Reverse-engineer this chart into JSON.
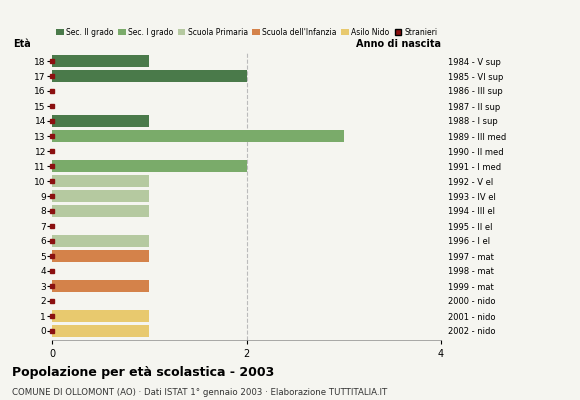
{
  "ages": [
    18,
    17,
    16,
    15,
    14,
    13,
    12,
    11,
    10,
    9,
    8,
    7,
    6,
    5,
    4,
    3,
    2,
    1,
    0
  ],
  "anno_nascita": [
    "1984 - V sup",
    "1985 - VI sup",
    "1986 - III sup",
    "1987 - II sup",
    "1988 - I sup",
    "1989 - III med",
    "1990 - II med",
    "1991 - I med",
    "1992 - V el",
    "1993 - IV el",
    "1994 - III el",
    "1995 - II el",
    "1996 - I el",
    "1997 - mat",
    "1998 - mat",
    "1999 - mat",
    "2000 - nido",
    "2001 - nido",
    "2002 - nido"
  ],
  "values": [
    1,
    2,
    0,
    0,
    1,
    3,
    0,
    2,
    1,
    1,
    1,
    0,
    1,
    1,
    0,
    1,
    0,
    1,
    1
  ],
  "bar_colors": [
    "#4a7a4a",
    "#4a7a4a",
    "#4a7a4a",
    "#4a7a4a",
    "#4a7a4a",
    "#7aab6a",
    "#7aab6a",
    "#7aab6a",
    "#b5c9a0",
    "#b5c9a0",
    "#b5c9a0",
    "#b5c9a0",
    "#b5c9a0",
    "#d4824a",
    "#d4824a",
    "#d4824a",
    "#e8c96e",
    "#e8c96e",
    "#e8c96e"
  ],
  "stranieri_color": "#8b1010",
  "legend_labels": [
    "Sec. II grado",
    "Sec. I grado",
    "Scuola Primaria",
    "Scuola dell'Infanzia",
    "Asilo Nido",
    "Stranieri"
  ],
  "legend_colors": [
    "#4a7a4a",
    "#7aab6a",
    "#b5c9a0",
    "#d4824a",
    "#e8c96e",
    "#8b1010"
  ],
  "title": "Popolazione per età scolastica - 2003",
  "subtitle": "COMUNE DI OLLOMONT (AO) · Dati ISTAT 1° gennaio 2003 · Elaborazione TUTTITALIA.IT",
  "ylabel_left": "Età",
  "ylabel_right": "Anno di nascita",
  "xlim": [
    0,
    4
  ],
  "xticks": [
    0,
    2,
    4
  ],
  "background_color": "#f5f5f0",
  "bar_height": 0.75,
  "grid_color": "#bbbbbb"
}
